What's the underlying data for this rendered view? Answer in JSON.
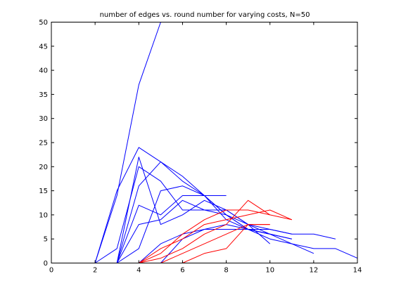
{
  "chart_data": {
    "type": "line",
    "title": "number of edges vs. round number for varying costs, N=50",
    "xlabel": "",
    "ylabel": "",
    "xlim": [
      0,
      14
    ],
    "ylim": [
      0,
      50
    ],
    "xticks": [
      0,
      2,
      4,
      6,
      8,
      10,
      12,
      14
    ],
    "yticks": [
      0,
      5,
      10,
      15,
      20,
      25,
      30,
      35,
      40,
      45,
      50
    ],
    "grid": false,
    "legend": "none",
    "colors": {
      "blue": "#0000ff",
      "red": "#ff0000",
      "green": "#00ff00"
    },
    "series": [
      {
        "color": "#0000ff",
        "x": [
          0,
          1,
          2,
          3,
          4,
          5
        ],
        "y": [
          0,
          0,
          0,
          14,
          37,
          50
        ]
      },
      {
        "color": "#0000ff",
        "x": [
          0,
          1,
          2,
          3,
          4,
          5,
          6,
          7,
          8,
          9,
          10,
          11
        ],
        "y": [
          0,
          0,
          0,
          15,
          24,
          21,
          18,
          14,
          10,
          7,
          6,
          5
        ]
      },
      {
        "color": "#0000ff",
        "x": [
          0,
          1,
          2,
          3,
          4,
          5,
          6,
          7,
          8,
          9,
          10
        ],
        "y": [
          0,
          0,
          0,
          3,
          20,
          17,
          11,
          11,
          10,
          8,
          4
        ]
      },
      {
        "color": "#0000ff",
        "x": [
          0,
          1,
          2,
          3,
          4,
          5,
          6,
          7,
          8,
          9,
          10,
          11
        ],
        "y": [
          0,
          0,
          0,
          0,
          22,
          8,
          10,
          13,
          11,
          8,
          7,
          6
        ]
      },
      {
        "color": "#0000ff",
        "x": [
          0,
          1,
          2,
          3,
          4,
          5,
          6,
          7,
          8,
          9,
          10,
          11
        ],
        "y": [
          0,
          0,
          0,
          0,
          16,
          21,
          17,
          14,
          9,
          7,
          6,
          5
        ]
      },
      {
        "color": "#0000ff",
        "x": [
          0,
          1,
          2,
          3,
          4,
          5,
          6,
          7,
          8
        ],
        "y": [
          0,
          0,
          0,
          0,
          12,
          10,
          14,
          14,
          14
        ]
      },
      {
        "color": "#0000ff",
        "x": [
          0,
          1,
          2,
          3,
          4,
          5,
          6,
          7,
          8,
          9,
          10
        ],
        "y": [
          0,
          0,
          0,
          0,
          8,
          9,
          13,
          11,
          11,
          8,
          6
        ]
      },
      {
        "color": "#0000ff",
        "x": [
          0,
          1,
          2,
          3,
          4,
          5,
          6,
          7,
          8,
          9,
          10,
          11,
          12
        ],
        "y": [
          0,
          0,
          0,
          0,
          3,
          15,
          16,
          14,
          10,
          7,
          6,
          4,
          2
        ]
      },
      {
        "color": "#0000ff",
        "x": [
          0,
          1,
          2,
          3,
          4,
          5,
          6,
          7,
          8,
          9,
          10,
          11,
          12,
          13
        ],
        "y": [
          0,
          0,
          0,
          0,
          0,
          4,
          6,
          7,
          7,
          7,
          7,
          6,
          6,
          5
        ]
      },
      {
        "color": "#0000ff",
        "x": [
          0,
          1,
          2,
          3,
          4,
          5,
          6,
          7,
          8,
          9,
          10,
          11,
          12,
          13,
          14
        ],
        "y": [
          0,
          0,
          0,
          0,
          0,
          0,
          5,
          7,
          8,
          7,
          5,
          4,
          3,
          3,
          1
        ]
      },
      {
        "color": "#ff0000",
        "x": [
          0,
          1,
          2,
          3,
          4,
          5,
          6,
          7,
          8,
          9,
          10,
          11
        ],
        "y": [
          0,
          0,
          0,
          0,
          0,
          2,
          6,
          9,
          11,
          11,
          10,
          9
        ]
      },
      {
        "color": "#ff0000",
        "x": [
          0,
          1,
          2,
          3,
          4,
          5,
          6,
          7,
          8,
          9,
          10,
          11
        ],
        "y": [
          0,
          0,
          0,
          0,
          0,
          3,
          5,
          8,
          9,
          10,
          11,
          9
        ]
      },
      {
        "color": "#ff0000",
        "x": [
          0,
          1,
          2,
          3,
          4,
          5,
          6,
          7,
          8,
          9,
          10
        ],
        "y": [
          0,
          0,
          0,
          0,
          0,
          1,
          3,
          6,
          8,
          13,
          10
        ]
      },
      {
        "color": "#ff0000",
        "x": [
          0,
          1,
          2,
          3,
          4,
          5,
          6,
          7,
          8,
          9,
          10
        ],
        "y": [
          0,
          0,
          0,
          0,
          0,
          0,
          2,
          4,
          6,
          8,
          8
        ]
      },
      {
        "color": "#ff0000",
        "x": [
          0,
          1,
          2,
          3,
          4,
          5,
          6,
          7,
          8,
          9,
          10
        ],
        "y": [
          0,
          0,
          0,
          0,
          0,
          0,
          0,
          2,
          3,
          8,
          8
        ]
      },
      {
        "color": "#00ff00",
        "x": [
          0,
          1,
          2,
          3,
          4,
          5,
          6,
          7,
          8,
          9,
          10,
          11,
          12
        ],
        "y": [
          0,
          0,
          0,
          0,
          0,
          0,
          0,
          0,
          0,
          0,
          0,
          0,
          0
        ]
      }
    ]
  }
}
